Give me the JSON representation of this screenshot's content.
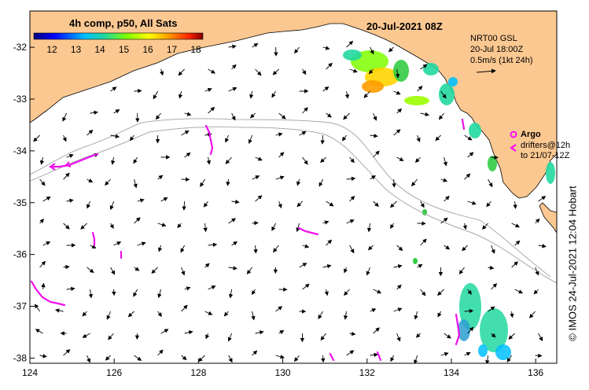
{
  "map": {
    "date_title": "20-Jul-2021 08Z",
    "colorbar_title": "4h comp, p50, All Sats",
    "colorbar_ticks": [
      "12",
      "13",
      "14",
      "15",
      "16",
      "17",
      "18"
    ],
    "info_lines": [
      "NRT00 GSL",
      "20-Jul 18:00Z",
      "0.5m/s (1kt 24h)"
    ],
    "argo_label": "Argo",
    "drifter_lines": [
      "drifters@12h",
      "to 21/07-12Z"
    ],
    "credit": "© IMOS 24-Jul-2021 12:04 Hobart",
    "lon_ticks": [
      "124",
      "126",
      "128",
      "130",
      "132",
      "134",
      "136"
    ],
    "lat_ticks": [
      "-32",
      "-33",
      "-34",
      "-35",
      "-36",
      "-37",
      "-38"
    ],
    "lon_range": [
      124,
      136.5
    ],
    "lat_range": [
      -38.1,
      -31.3
    ],
    "colors": {
      "land": "#fcc891",
      "argo": "#ff00ff",
      "drifter": "#ee11ee",
      "isobath": "#aaaaaa"
    }
  }
}
